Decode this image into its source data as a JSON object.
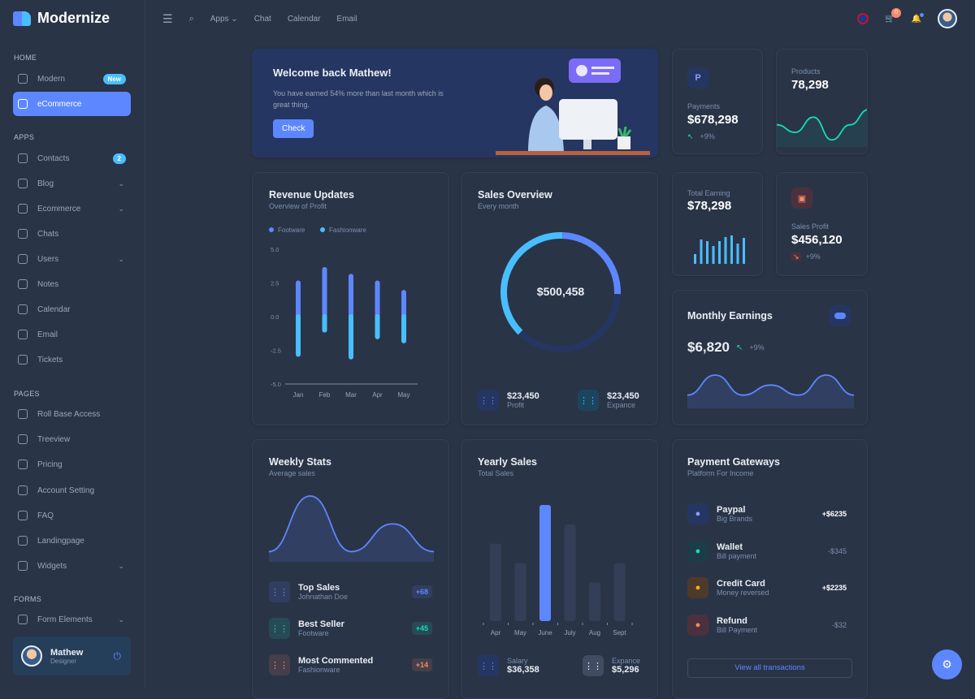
{
  "app": {
    "name": "Modernize"
  },
  "topnav": {
    "apps": "Apps",
    "chat": "Chat",
    "calendar": "Calendar",
    "email": "Email",
    "cart_count": "0"
  },
  "sidebar": {
    "sections": {
      "home": "HOME",
      "apps": "APPS",
      "pages": "PAGES",
      "forms": "FORMS"
    },
    "items": [
      {
        "label": "Modern",
        "badge": "New"
      },
      {
        "label": "eCommerce"
      },
      {
        "label": "Contacts",
        "badge": "2"
      },
      {
        "label": "Blog",
        "chevron": true
      },
      {
        "label": "Ecommerce",
        "chevron": true
      },
      {
        "label": "Chats"
      },
      {
        "label": "Users",
        "chevron": true
      },
      {
        "label": "Notes"
      },
      {
        "label": "Calendar"
      },
      {
        "label": "Email"
      },
      {
        "label": "Tickets"
      },
      {
        "label": "Roll Base Access"
      },
      {
        "label": "Treeview"
      },
      {
        "label": "Pricing"
      },
      {
        "label": "Account Setting"
      },
      {
        "label": "FAQ"
      },
      {
        "label": "Landingpage"
      },
      {
        "label": "Widgets",
        "chevron": true
      },
      {
        "label": "Form Elements",
        "chevron": true
      }
    ],
    "profile": {
      "name": "Mathew",
      "role": "Designer"
    }
  },
  "welcome": {
    "title": "Welcome back Mathew!",
    "text": "You have earned 54% more than last month which is great thing.",
    "button": "Check"
  },
  "payments": {
    "label": "Payments",
    "value": "$678,298",
    "change": "+9%"
  },
  "products": {
    "label": "Products",
    "value": "78,298"
  },
  "total_earning": {
    "label": "Total Earning",
    "value": "$78,298"
  },
  "sales_profit": {
    "label": "Sales Profit",
    "value": "$456,120",
    "change": "+9%"
  },
  "monthly": {
    "title": "Monthly Earnings",
    "value": "$6,820",
    "change": "+9%"
  },
  "revenue": {
    "title": "Revenue Updates",
    "subtitle": "Overview of Profit"
  },
  "sales_overview": {
    "title": "Sales Overview",
    "subtitle": "Every month",
    "center": "$500,458",
    "profit_value": "$23,450",
    "profit_label": "Profit",
    "expense_value": "$23,450",
    "expense_label": "Expance"
  },
  "weekly": {
    "title": "Weekly Stats",
    "subtitle": "Average sales",
    "items": [
      {
        "title": "Top Sales",
        "sub": "Johnathan Doe",
        "value": "+68",
        "color": "#5d87ff"
      },
      {
        "title": "Best Seller",
        "sub": "Footware",
        "value": "+45",
        "color": "#13deb9"
      },
      {
        "title": "Most Commented",
        "sub": "Fashionware",
        "value": "+14",
        "color": "#fa896b"
      }
    ]
  },
  "yearly": {
    "title": "Yearly Sales",
    "subtitle": "Total Sales",
    "salary_label": "Salary",
    "salary_value": "$36,358",
    "expense_label": "Expance",
    "expense_value": "$5,296"
  },
  "gateways": {
    "title": "Payment Gateways",
    "subtitle": "Platform For Income",
    "button": "View all transactions",
    "items": [
      {
        "title": "Paypal",
        "sub": "Big Brands",
        "value": "+$6235",
        "bg": "#253662",
        "fg": "#8c9eff"
      },
      {
        "title": "Wallet",
        "sub": "Bill payment",
        "value": "-$345",
        "bg": "#1b3c48",
        "fg": "#13deb9"
      },
      {
        "title": "Credit Card",
        "sub": "Money reversed",
        "value": "+$2235",
        "bg": "#4d3a2a",
        "fg": "#ffae1f"
      },
      {
        "title": "Refund",
        "sub": "Bill Payment",
        "value": "-$32",
        "bg": "#4b313d",
        "fg": "#fa896b"
      }
    ]
  },
  "chart_data": [
    {
      "type": "bar",
      "title": "Revenue Updates",
      "categories": [
        "Jan",
        "Feb",
        "Mar",
        "Apr",
        "May"
      ],
      "series": [
        {
          "name": "Footware",
          "values": [
            2.5,
            3.5,
            3,
            2.5,
            1.8
          ],
          "color": "#5d87ff"
        },
        {
          "name": "Fashionware",
          "values": [
            -2.8,
            -1,
            -3,
            -1.5,
            -1.8
          ],
          "color": "#49beff"
        }
      ],
      "ylim": [
        -5,
        5
      ],
      "yticks": [
        "5.0",
        "2.5",
        "0.0",
        "-2.5",
        "-5.0"
      ],
      "legend": "top-left"
    },
    {
      "type": "pie",
      "title": "Sales Overview",
      "values": [
        38,
        25,
        37
      ],
      "colors": [
        "#49beff",
        "#5d87ff",
        "#253662"
      ]
    },
    {
      "type": "bar",
      "title": "Yearly Sales",
      "categories": [
        "Apr",
        "May",
        "June",
        "July",
        "Aug",
        "Sept"
      ],
      "values": [
        20,
        15,
        30,
        25,
        10,
        15
      ],
      "highlight": "June"
    },
    {
      "type": "bar",
      "title": "Total Earning",
      "values": [
        12,
        30,
        28,
        22,
        28,
        33,
        35,
        25,
        32
      ],
      "color": "#49beff"
    },
    {
      "type": "line",
      "title": "Products",
      "values": [
        5,
        3,
        7,
        1,
        5,
        9
      ],
      "color": "#13deb9"
    },
    {
      "type": "area",
      "title": "Monthly Earnings",
      "values": [
        2,
        6,
        2,
        4,
        2,
        6,
        2
      ],
      "color": "#5d87ff"
    },
    {
      "type": "area",
      "title": "Weekly Stats",
      "values": [
        1,
        9,
        1,
        5,
        1
      ],
      "color": "#5d87ff"
    }
  ]
}
